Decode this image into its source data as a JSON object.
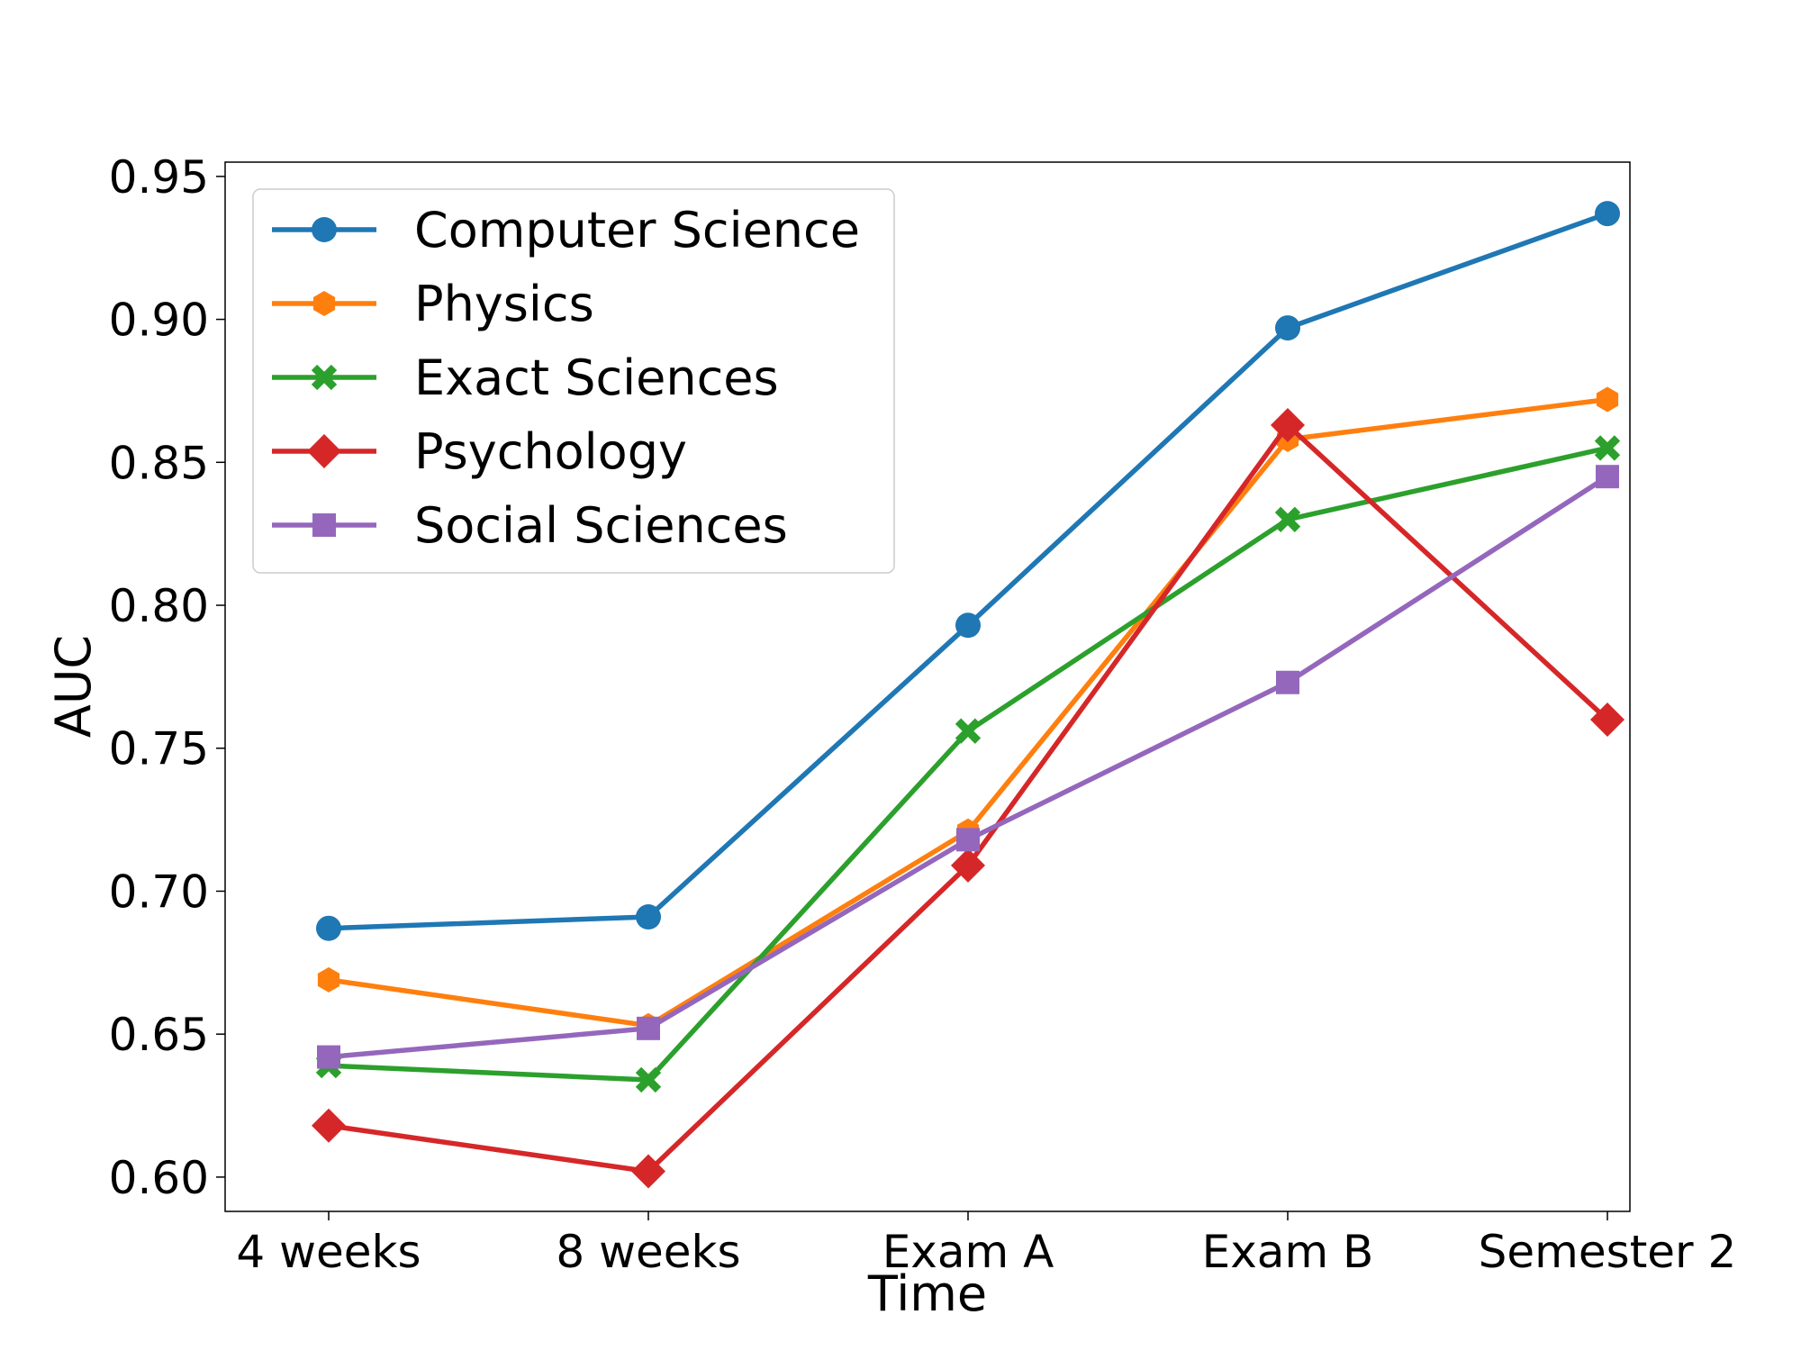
{
  "chart_data": {
    "type": "line",
    "title": "",
    "xlabel": "Time",
    "ylabel": "AUC",
    "categories": [
      "4 weeks",
      "8 weeks",
      "Exam A",
      "Exam B",
      "Semester 2"
    ],
    "ylim": [
      0.588,
      0.955
    ],
    "yticks": [
      "0.60",
      "0.65",
      "0.70",
      "0.75",
      "0.80",
      "0.85",
      "0.90",
      "0.95"
    ],
    "grid": false,
    "legend_position": "top-left",
    "series": [
      {
        "name": "Computer Science",
        "color": "#1f77b4",
        "marker": "circle",
        "values": [
          0.687,
          0.691,
          0.793,
          0.897,
          0.937
        ]
      },
      {
        "name": "Physics",
        "color": "#ff7f0e",
        "marker": "hexagon",
        "values": [
          0.669,
          0.653,
          0.721,
          0.858,
          0.872
        ]
      },
      {
        "name": "Exact Sciences",
        "color": "#2ca02c",
        "marker": "x",
        "values": [
          0.639,
          0.634,
          0.756,
          0.83,
          0.855
        ]
      },
      {
        "name": "Psychology",
        "color": "#d62728",
        "marker": "diamond",
        "values": [
          0.618,
          0.602,
          0.709,
          0.863,
          0.76
        ]
      },
      {
        "name": "Social Sciences",
        "color": "#9467bd",
        "marker": "square",
        "values": [
          0.642,
          0.652,
          0.718,
          0.773,
          0.845
        ]
      }
    ]
  }
}
